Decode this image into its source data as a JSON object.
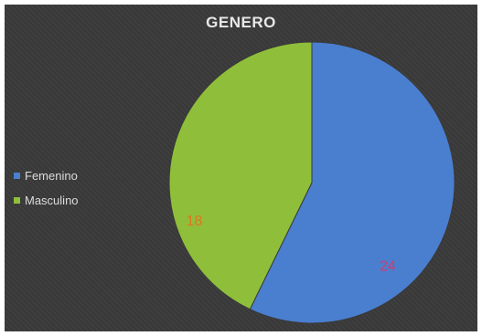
{
  "chart_data": {
    "type": "pie",
    "title": "GENERO",
    "categories": [
      "Femenino",
      "Masculino"
    ],
    "values": [
      24,
      18
    ],
    "colors": [
      "#4a7fd0",
      "#8fbf3a"
    ],
    "label_colors": [
      "#d63a6a",
      "#e0761f"
    ],
    "legend": "left"
  }
}
